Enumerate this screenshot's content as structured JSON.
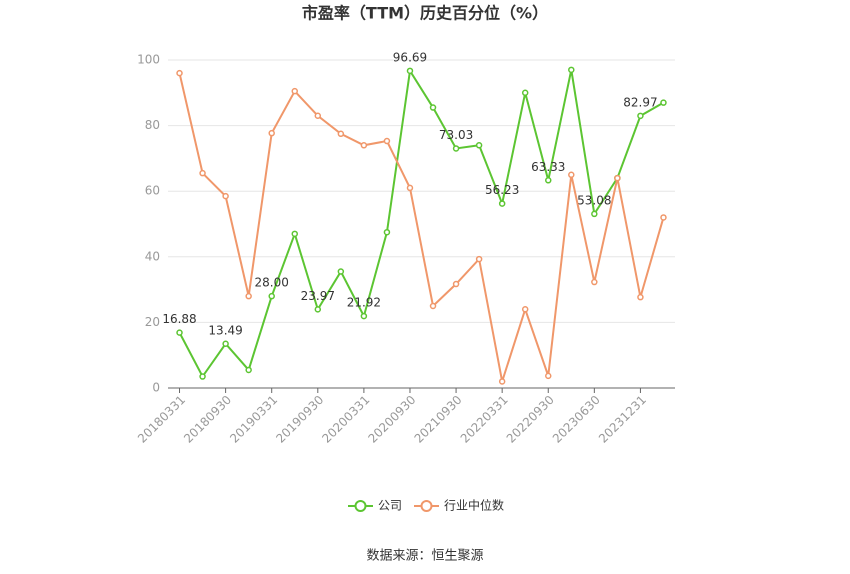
{
  "chart_data": {
    "type": "line",
    "title": "市盈率（TTM）历史百分位（%）",
    "categories": [
      "20180331",
      null,
      "20180930",
      null,
      "20190331",
      null,
      "20190930",
      null,
      "20200331",
      null,
      "20200930",
      null,
      "20210930",
      null,
      "20220331",
      null,
      "20220930",
      null,
      "20230630",
      null,
      "20231231",
      null
    ],
    "series": [
      {
        "name": "公司",
        "color": "#5cc532",
        "values": [
          16.88,
          3.5,
          13.49,
          5.5,
          28.0,
          47,
          23.97,
          35.5,
          21.92,
          47.5,
          96.69,
          85.5,
          73.03,
          74,
          56.23,
          90,
          63.33,
          97,
          53.08,
          64,
          82.97,
          87
        ],
        "value_labels": [
          "16.88",
          null,
          "13.49",
          null,
          "28.00",
          null,
          "23.97",
          null,
          "21.92",
          null,
          "96.69",
          null,
          "73.03",
          null,
          "56.23",
          null,
          "63.33",
          null,
          "53.08",
          null,
          "82.97",
          null
        ]
      },
      {
        "name": "行业中位数",
        "color": "#f0976a",
        "values": [
          96,
          65.5,
          58.5,
          28,
          77.7,
          90.5,
          83,
          77.5,
          74,
          75.3,
          61,
          25,
          31.7,
          39.3,
          2,
          24,
          3.7,
          65,
          32.3,
          64,
          27.7,
          52
        ]
      }
    ],
    "ylim": [
      0,
      100
    ],
    "yticks": [
      0,
      20,
      40,
      60,
      80,
      100
    ],
    "grid": true,
    "legend": "bottom",
    "source": "数据来源：恒生聚源"
  }
}
